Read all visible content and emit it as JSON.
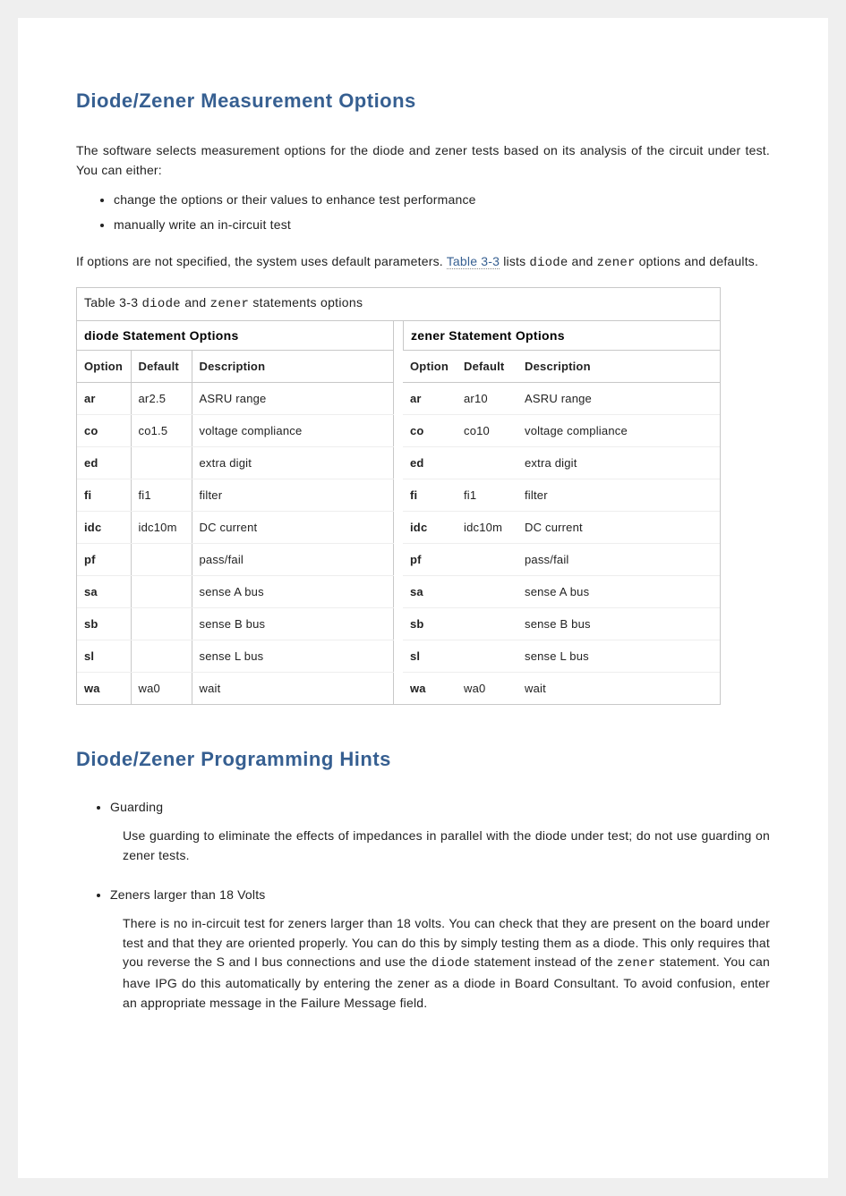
{
  "colors": {
    "heading": "#365f91",
    "text": "#222222",
    "page_bg": "#ffffff",
    "outer_bg": "#efefef",
    "border": "#c8c8c8",
    "row_border": "#eeeeee"
  },
  "section1": {
    "heading": "Diode/Zener Measurement Options",
    "intro": "The software selects measurement options for the diode and zener tests based on its analysis of the circuit under test. You can either:",
    "bullets": [
      "change the options or their values to enhance test performance",
      "manually write an in-circuit test"
    ],
    "after_bullets_pre": "If options are not specified, the system uses default parameters. ",
    "after_bullets_link": "Table 3-3",
    "after_bullets_mid": " lists ",
    "mono1": "diode",
    "after_bullets_and": " and ",
    "mono2": "zener",
    "after_bullets_post": " options and defaults."
  },
  "table": {
    "caption_pre": "Table 3-3 ",
    "caption_m1": "diode",
    "caption_mid": " and ",
    "caption_m2": "zener",
    "caption_post": " statements options",
    "left_title": "diode Statement Options",
    "right_title": "zener Statement Options",
    "headers": [
      "Option",
      "Default",
      "Description"
    ],
    "diode_rows": [
      {
        "option": "ar",
        "default": "ar2.5",
        "desc": "ASRU range"
      },
      {
        "option": "co",
        "default": "co1.5",
        "desc": "voltage compliance"
      },
      {
        "option": "ed",
        "default": "",
        "desc": "extra digit"
      },
      {
        "option": "fi",
        "default": "fi1",
        "desc": "filter"
      },
      {
        "option": "idc",
        "default": "idc10m",
        "desc": "DC current"
      },
      {
        "option": "pf",
        "default": "",
        "desc": "pass/fail"
      },
      {
        "option": "sa",
        "default": "",
        "desc": "sense A bus"
      },
      {
        "option": "sb",
        "default": "",
        "desc": "sense B bus"
      },
      {
        "option": "sl",
        "default": "",
        "desc": "sense L bus"
      },
      {
        "option": "wa",
        "default": "wa0",
        "desc": "wait"
      }
    ],
    "zener_rows": [
      {
        "option": "ar",
        "default": "ar10",
        "desc": "ASRU range"
      },
      {
        "option": "co",
        "default": "co10",
        "desc": "voltage compliance"
      },
      {
        "option": "ed",
        "default": "",
        "desc": "extra digit"
      },
      {
        "option": "fi",
        "default": "fi1",
        "desc": "filter"
      },
      {
        "option": "idc",
        "default": "idc10m",
        "desc": "DC current"
      },
      {
        "option": "pf",
        "default": "",
        "desc": "pass/fail"
      },
      {
        "option": "sa",
        "default": "",
        "desc": "sense A bus"
      },
      {
        "option": "sb",
        "default": "",
        "desc": "sense B bus"
      },
      {
        "option": "sl",
        "default": "",
        "desc": "sense L bus"
      },
      {
        "option": "wa",
        "default": "wa0",
        "desc": "wait"
      }
    ]
  },
  "section2": {
    "heading": "Diode/Zener Programming Hints",
    "hints": [
      {
        "title": "Guarding",
        "body_plain": "Use guarding to eliminate the effects of impedances in parallel with the diode under test; do not use guarding on zener tests."
      },
      {
        "title": "Zeners larger than 18 Volts",
        "body_pre": "There is no in-circuit test for zeners larger than 18 volts. You can check that they are present on the board under test and that they are oriented properly. You can do this by simply testing them as a diode. This only requires that you reverse the S and I bus connections and use the ",
        "mono1": "diode",
        "body_mid": " statement instead of the ",
        "mono2": "zener",
        "body_post": " statement. You can have IPG do this automatically by entering the zener as a diode in Board Consultant. To avoid confusion, enter an appropriate message in the Failure Message field."
      }
    ]
  }
}
